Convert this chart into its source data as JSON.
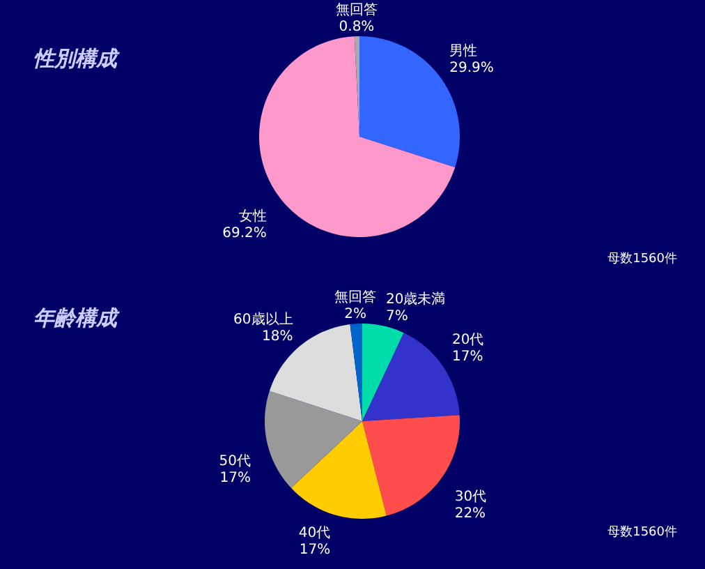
{
  "chart_data": [
    {
      "type": "pie",
      "title": "性別構成",
      "categories": [
        "男性",
        "女性",
        "無回答"
      ],
      "values": [
        29.9,
        69.2,
        0.8
      ],
      "value_labels": [
        "29.9%",
        "69.2%",
        "0.8%"
      ],
      "colors": [
        "#3366ff",
        "#ff99cc",
        "#aaaaaa"
      ],
      "annotations": [
        "母数1560件"
      ],
      "legend": false
    },
    {
      "type": "pie",
      "title": "年齢構成",
      "categories": [
        "20歳未満",
        "20代",
        "30代",
        "40代",
        "50代",
        "60歳以上",
        "無回答"
      ],
      "values": [
        7,
        17,
        22,
        17,
        17,
        18,
        2
      ],
      "value_labels": [
        "7%",
        "17%",
        "22%",
        "17%",
        "17%",
        "18%",
        "2%"
      ],
      "colors": [
        "#00ddaa",
        "#3333cc",
        "#ff4d4d",
        "#ffcc00",
        "#999999",
        "#dddddd",
        "#0066cc"
      ],
      "annotations": [
        "母数1560件"
      ],
      "legend": false
    }
  ]
}
